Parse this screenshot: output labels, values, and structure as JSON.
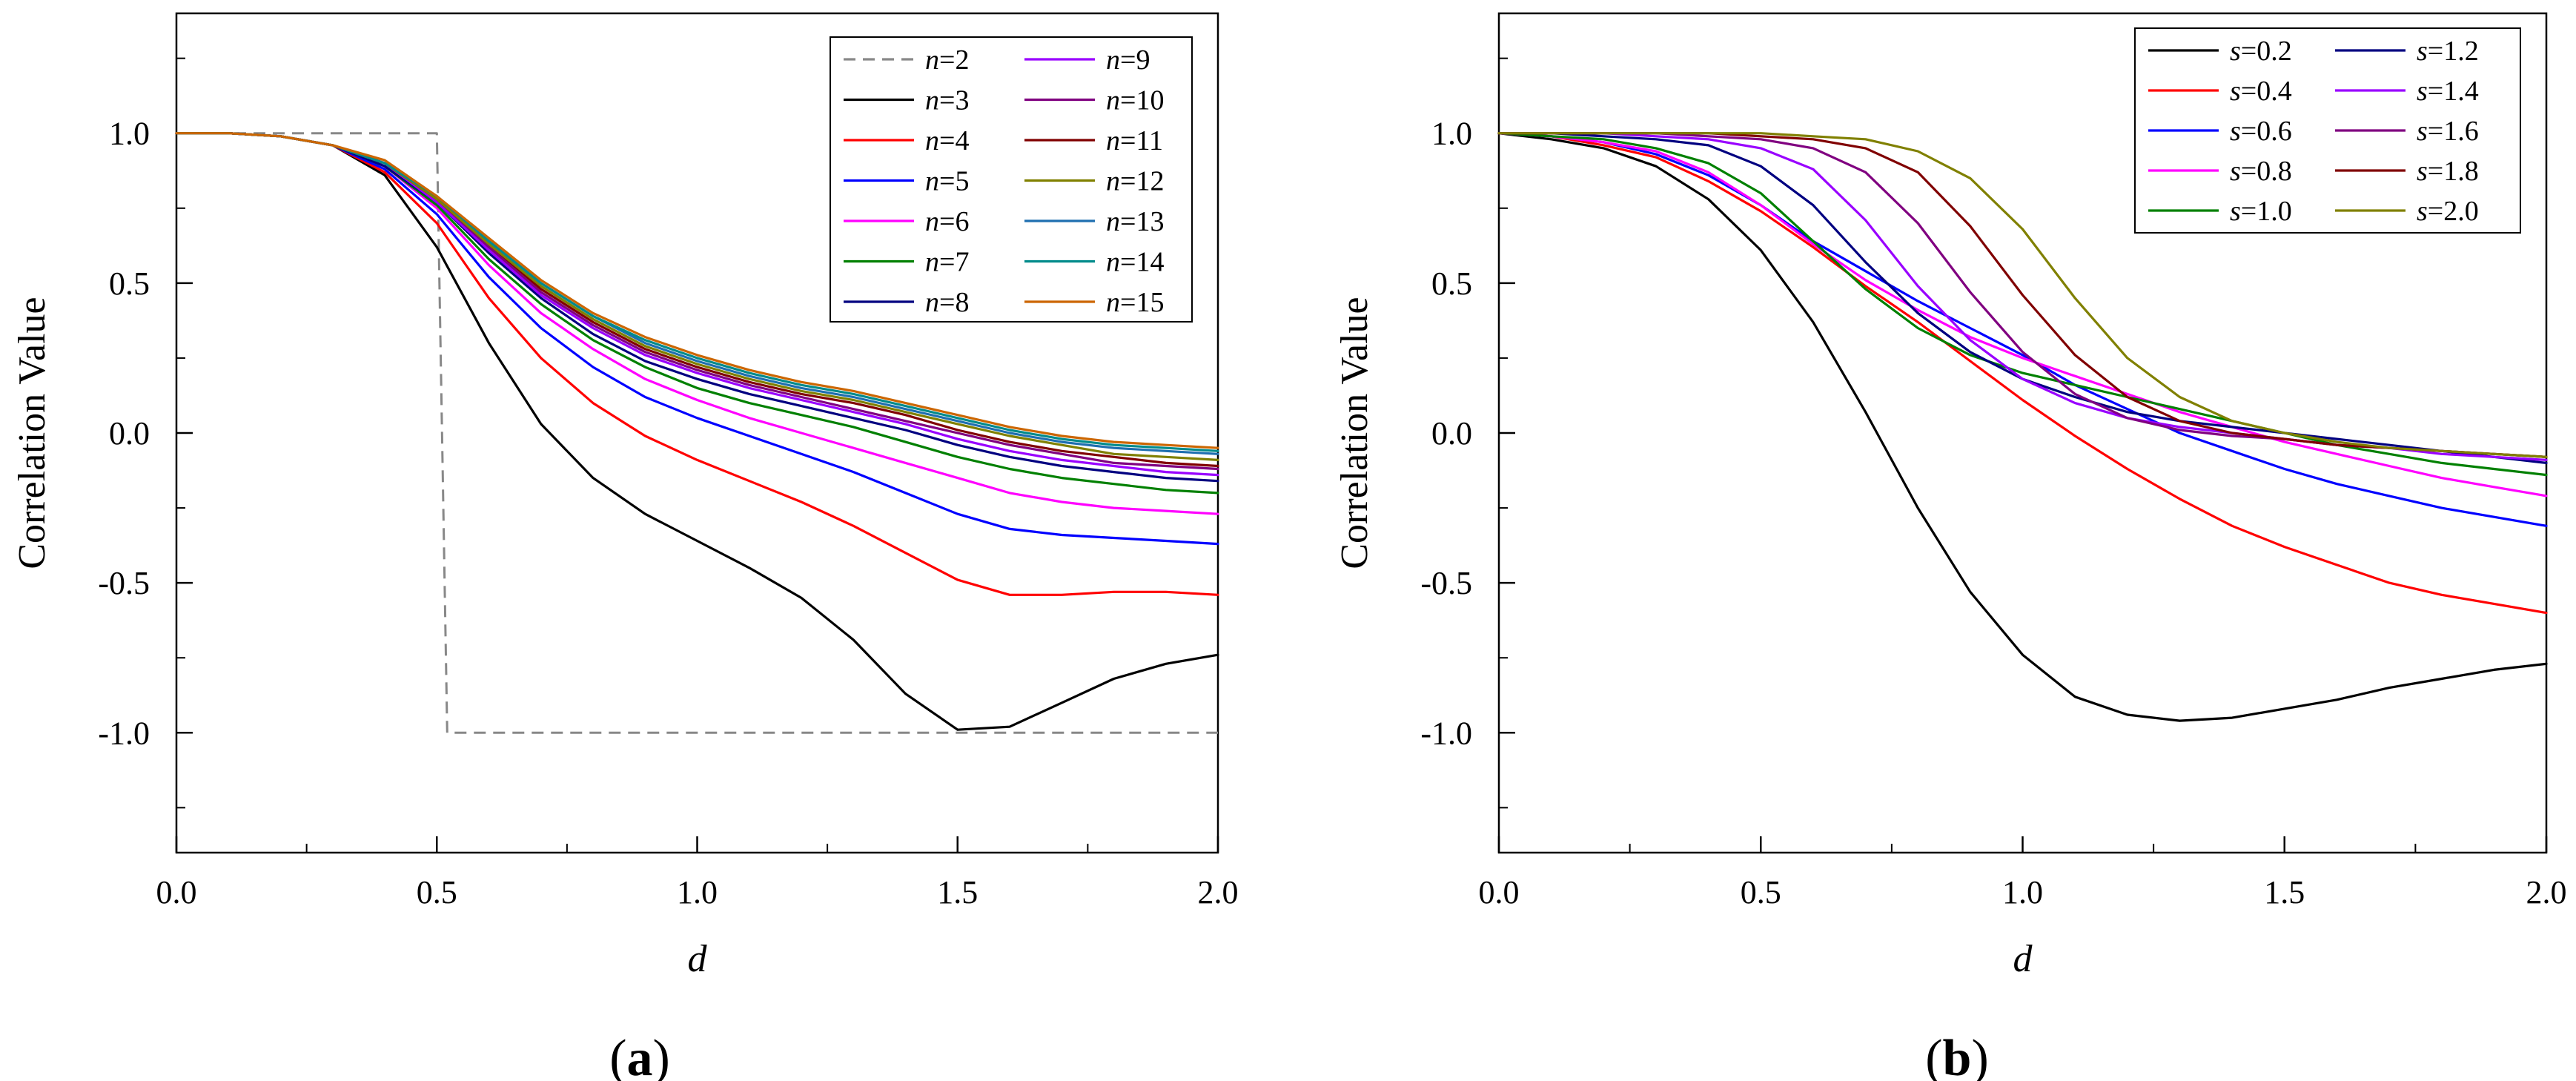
{
  "figure": {
    "panels": [
      {
        "letter": "a",
        "paren_open": "(",
        "paren_close": ")"
      },
      {
        "letter": "b",
        "paren_open": "(",
        "paren_close": ")"
      }
    ]
  },
  "chart_data": [
    {
      "type": "line",
      "panel": "a",
      "xlabel": "d",
      "ylabel": "Correlation Value",
      "xlim": [
        0,
        2
      ],
      "ylim": [
        -1.4,
        1.4
      ],
      "xticks": [
        "0.0",
        "0.5",
        "1.0",
        "1.5",
        "2.0"
      ],
      "yticks": [
        "-1.0",
        "-0.5",
        "0.0",
        "0.5",
        "1.0"
      ],
      "xtick_values": [
        0,
        0.5,
        1,
        1.5,
        2
      ],
      "ytick_values": [
        -1,
        -0.5,
        0,
        0.5,
        1
      ],
      "legend": {
        "position": "top-right",
        "columns": 2
      },
      "x": [
        0,
        0.1,
        0.2,
        0.3,
        0.4,
        0.5,
        0.6,
        0.7,
        0.8,
        0.9,
        1.0,
        1.1,
        1.2,
        1.3,
        1.4,
        1.5,
        1.6,
        1.7,
        1.8,
        1.9,
        2.0
      ],
      "series": [
        {
          "var": "n",
          "num": "2",
          "color": "#888888",
          "dashed": true,
          "x": [
            0,
            0.5,
            0.52,
            2.0
          ],
          "values": [
            1.0,
            1.0,
            -1.0,
            -1.0
          ]
        },
        {
          "var": "n",
          "num": "3",
          "color": "#000000",
          "values": [
            1.0,
            1.0,
            0.99,
            0.96,
            0.86,
            0.62,
            0.3,
            0.03,
            -0.15,
            -0.27,
            -0.36,
            -0.45,
            -0.55,
            -0.69,
            -0.87,
            -0.99,
            -0.98,
            -0.9,
            -0.82,
            -0.77,
            -0.74
          ]
        },
        {
          "var": "n",
          "num": "4",
          "color": "#ff0000",
          "values": [
            1.0,
            1.0,
            0.99,
            0.96,
            0.87,
            0.7,
            0.45,
            0.25,
            0.1,
            -0.01,
            -0.09,
            -0.16,
            -0.23,
            -0.31,
            -0.4,
            -0.49,
            -0.54,
            -0.54,
            -0.53,
            -0.53,
            -0.54
          ]
        },
        {
          "var": "n",
          "num": "5",
          "color": "#0000ff",
          "values": [
            1.0,
            1.0,
            0.99,
            0.96,
            0.88,
            0.73,
            0.52,
            0.35,
            0.22,
            0.12,
            0.05,
            -0.01,
            -0.07,
            -0.13,
            -0.2,
            -0.27,
            -0.32,
            -0.34,
            -0.35,
            -0.36,
            -0.37
          ]
        },
        {
          "var": "n",
          "num": "6",
          "color": "#ff00ff",
          "values": [
            1.0,
            1.0,
            0.99,
            0.96,
            0.89,
            0.75,
            0.56,
            0.4,
            0.28,
            0.18,
            0.11,
            0.05,
            0.0,
            -0.05,
            -0.1,
            -0.15,
            -0.2,
            -0.23,
            -0.25,
            -0.26,
            -0.27
          ]
        },
        {
          "var": "n",
          "num": "7",
          "color": "#008000",
          "values": [
            1.0,
            1.0,
            0.99,
            0.96,
            0.89,
            0.76,
            0.58,
            0.43,
            0.31,
            0.22,
            0.15,
            0.1,
            0.06,
            0.02,
            -0.03,
            -0.08,
            -0.12,
            -0.15,
            -0.17,
            -0.19,
            -0.2
          ]
        },
        {
          "var": "n",
          "num": "8",
          "color": "#000080",
          "values": [
            1.0,
            1.0,
            0.99,
            0.96,
            0.89,
            0.77,
            0.6,
            0.45,
            0.33,
            0.24,
            0.18,
            0.13,
            0.09,
            0.05,
            0.01,
            -0.04,
            -0.08,
            -0.11,
            -0.13,
            -0.15,
            -0.16
          ]
        },
        {
          "var": "n",
          "num": "9",
          "color": "#9900ff",
          "values": [
            1.0,
            1.0,
            0.99,
            0.96,
            0.9,
            0.77,
            0.61,
            0.46,
            0.35,
            0.26,
            0.2,
            0.15,
            0.11,
            0.07,
            0.03,
            -0.02,
            -0.06,
            -0.09,
            -0.11,
            -0.13,
            -0.14
          ]
        },
        {
          "var": "n",
          "num": "10",
          "color": "#800080",
          "values": [
            1.0,
            1.0,
            0.99,
            0.96,
            0.9,
            0.78,
            0.62,
            0.47,
            0.36,
            0.27,
            0.21,
            0.16,
            0.12,
            0.08,
            0.04,
            0.0,
            -0.04,
            -0.07,
            -0.1,
            -0.11,
            -0.12
          ]
        },
        {
          "var": "n",
          "num": "11",
          "color": "#800000",
          "values": [
            1.0,
            1.0,
            0.99,
            0.96,
            0.9,
            0.78,
            0.63,
            0.48,
            0.37,
            0.28,
            0.22,
            0.17,
            0.13,
            0.1,
            0.06,
            0.01,
            -0.03,
            -0.06,
            -0.08,
            -0.1,
            -0.11
          ]
        },
        {
          "var": "n",
          "num": "12",
          "color": "#808000",
          "values": [
            1.0,
            1.0,
            0.99,
            0.96,
            0.9,
            0.78,
            0.63,
            0.49,
            0.38,
            0.29,
            0.23,
            0.18,
            0.14,
            0.11,
            0.07,
            0.03,
            -0.01,
            -0.04,
            -0.07,
            -0.08,
            -0.09
          ]
        },
        {
          "var": "n",
          "num": "13",
          "color": "#1f6fb0",
          "values": [
            1.0,
            1.0,
            0.99,
            0.96,
            0.9,
            0.79,
            0.64,
            0.5,
            0.39,
            0.3,
            0.24,
            0.19,
            0.15,
            0.12,
            0.08,
            0.04,
            0.0,
            -0.03,
            -0.05,
            -0.06,
            -0.07
          ]
        },
        {
          "var": "n",
          "num": "14",
          "color": "#008b8b",
          "values": [
            1.0,
            1.0,
            0.99,
            0.96,
            0.9,
            0.79,
            0.64,
            0.5,
            0.39,
            0.31,
            0.25,
            0.2,
            0.16,
            0.13,
            0.09,
            0.05,
            0.01,
            -0.02,
            -0.04,
            -0.05,
            -0.06
          ]
        },
        {
          "var": "n",
          "num": "15",
          "color": "#cc6600",
          "values": [
            1.0,
            1.0,
            0.99,
            0.96,
            0.91,
            0.79,
            0.65,
            0.51,
            0.4,
            0.32,
            0.26,
            0.21,
            0.17,
            0.14,
            0.1,
            0.06,
            0.02,
            -0.01,
            -0.03,
            -0.04,
            -0.05
          ]
        }
      ]
    },
    {
      "type": "line",
      "panel": "b",
      "xlabel": "d",
      "ylabel": "Correlation Value",
      "xlim": [
        0,
        2
      ],
      "ylim": [
        -1.4,
        1.4
      ],
      "xticks": [
        "0.0",
        "0.5",
        "1.0",
        "1.5",
        "2.0"
      ],
      "yticks": [
        "-1.0",
        "-0.5",
        "0.0",
        "0.5",
        "1.0"
      ],
      "xtick_values": [
        0,
        0.5,
        1,
        1.5,
        2
      ],
      "ytick_values": [
        -1,
        -0.5,
        0,
        0.5,
        1
      ],
      "legend": {
        "position": "top-right",
        "columns": 2
      },
      "x": [
        0,
        0.1,
        0.2,
        0.3,
        0.4,
        0.5,
        0.6,
        0.7,
        0.8,
        0.9,
        1.0,
        1.1,
        1.2,
        1.3,
        1.4,
        1.5,
        1.6,
        1.7,
        1.8,
        1.9,
        2.0
      ],
      "series": [
        {
          "var": "s",
          "num": "0.2",
          "color": "#000000",
          "values": [
            1.0,
            0.98,
            0.95,
            0.89,
            0.78,
            0.61,
            0.37,
            0.07,
            -0.25,
            -0.53,
            -0.74,
            -0.88,
            -0.94,
            -0.96,
            -0.95,
            -0.92,
            -0.89,
            -0.85,
            -0.82,
            -0.79,
            -0.77
          ]
        },
        {
          "var": "s",
          "num": "0.4",
          "color": "#ff0000",
          "values": [
            1.0,
            0.99,
            0.96,
            0.92,
            0.84,
            0.74,
            0.62,
            0.49,
            0.37,
            0.24,
            0.11,
            -0.01,
            -0.12,
            -0.22,
            -0.31,
            -0.38,
            -0.44,
            -0.5,
            -0.54,
            -0.57,
            -0.6
          ]
        },
        {
          "var": "s",
          "num": "0.6",
          "color": "#0000ff",
          "values": [
            1.0,
            0.99,
            0.97,
            0.93,
            0.86,
            0.76,
            0.64,
            0.54,
            0.44,
            0.35,
            0.26,
            0.16,
            0.08,
            0.0,
            -0.06,
            -0.12,
            -0.17,
            -0.21,
            -0.25,
            -0.28,
            -0.31
          ]
        },
        {
          "var": "s",
          "num": "0.8",
          "color": "#ff00ff",
          "values": [
            1.0,
            0.99,
            0.97,
            0.94,
            0.87,
            0.76,
            0.63,
            0.51,
            0.41,
            0.32,
            0.25,
            0.19,
            0.13,
            0.07,
            0.02,
            -0.03,
            -0.07,
            -0.11,
            -0.15,
            -0.18,
            -0.21
          ]
        },
        {
          "var": "s",
          "num": "1.0",
          "color": "#008000",
          "values": [
            1.0,
            0.99,
            0.98,
            0.95,
            0.9,
            0.8,
            0.64,
            0.48,
            0.35,
            0.26,
            0.2,
            0.16,
            0.12,
            0.08,
            0.04,
            0.0,
            -0.04,
            -0.07,
            -0.1,
            -0.12,
            -0.14
          ]
        },
        {
          "var": "s",
          "num": "1.2",
          "color": "#000080",
          "values": [
            1.0,
            1.0,
            0.99,
            0.98,
            0.96,
            0.89,
            0.76,
            0.57,
            0.4,
            0.27,
            0.18,
            0.12,
            0.07,
            0.04,
            0.02,
            0.0,
            -0.02,
            -0.04,
            -0.06,
            -0.08,
            -0.1
          ]
        },
        {
          "var": "s",
          "num": "1.4",
          "color": "#9900ff",
          "values": [
            1.0,
            1.0,
            1.0,
            0.99,
            0.98,
            0.95,
            0.88,
            0.71,
            0.49,
            0.31,
            0.18,
            0.1,
            0.05,
            0.02,
            0.0,
            -0.02,
            -0.04,
            -0.05,
            -0.07,
            -0.08,
            -0.09
          ]
        },
        {
          "var": "s",
          "num": "1.6",
          "color": "#800080",
          "values": [
            1.0,
            1.0,
            1.0,
            1.0,
            0.99,
            0.98,
            0.95,
            0.87,
            0.7,
            0.47,
            0.27,
            0.13,
            0.05,
            0.01,
            -0.01,
            -0.02,
            -0.04,
            -0.05,
            -0.06,
            -0.07,
            -0.08
          ]
        },
        {
          "var": "s",
          "num": "1.8",
          "color": "#800000",
          "values": [
            1.0,
            1.0,
            1.0,
            1.0,
            1.0,
            0.99,
            0.98,
            0.95,
            0.87,
            0.69,
            0.46,
            0.26,
            0.12,
            0.04,
            0.0,
            -0.02,
            -0.04,
            -0.05,
            -0.06,
            -0.07,
            -0.08
          ]
        },
        {
          "var": "s",
          "num": "2.0",
          "color": "#808000",
          "values": [
            1.0,
            1.0,
            1.0,
            1.0,
            1.0,
            1.0,
            0.99,
            0.98,
            0.94,
            0.85,
            0.68,
            0.45,
            0.25,
            0.12,
            0.04,
            0.0,
            -0.03,
            -0.05,
            -0.06,
            -0.07,
            -0.08
          ]
        }
      ]
    }
  ]
}
